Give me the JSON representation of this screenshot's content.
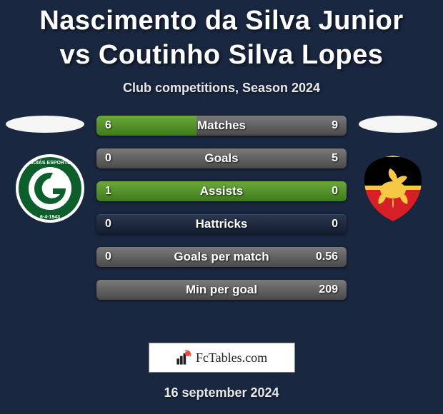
{
  "title": "Nascimento da Silva Junior vs Coutinho Silva Lopes",
  "subtitle": "Club competitions, Season 2024",
  "brand": "FcTables.com",
  "date_line": "16 september 2024",
  "background_color": "#1a2740",
  "title_color": "#ffffff",
  "title_fontsize": 38,
  "subtitle_fontsize": 18,
  "bar": {
    "height": 28,
    "gap": 18,
    "radius": 6,
    "track_gradient": [
      "rgba(255,255,255,0.08)",
      "rgba(0,0,0,0.25)"
    ],
    "label_fontsize": 17,
    "value_fontsize": 16,
    "text_color": "#ffffff"
  },
  "fill_palette": {
    "left": {
      "from": "#6aa93c",
      "to": "#3f7a1a"
    },
    "right": {
      "from": "#7a7a7a",
      "to": "#4a4a4a"
    }
  },
  "brand_box": {
    "bg": "#ffffff",
    "border": "#888888",
    "text_color": "#222222",
    "logo_color": "#e94b3c"
  },
  "teams": {
    "left": {
      "name": "Goiás",
      "crest_colors": {
        "ring_outer": "#ffffff",
        "ring_inner": "#0c5f2a",
        "disc": "#ffffff",
        "g": "#0c5f2a",
        "text": "#ffffff"
      }
    },
    "right": {
      "name": "Sport Recife",
      "crest_colors": {
        "shield_top": "#000000",
        "shield_bottom": "#d61f26",
        "stripe": "#f7c843",
        "lion": "#f7c843"
      }
    }
  },
  "rows": [
    {
      "label": "Matches",
      "left_val": "6",
      "right_val": "9",
      "left_pct": 40,
      "right_pct": 60
    },
    {
      "label": "Goals",
      "left_val": "0",
      "right_val": "5",
      "left_pct": 0,
      "right_pct": 100
    },
    {
      "label": "Assists",
      "left_val": "1",
      "right_val": "0",
      "left_pct": 100,
      "right_pct": 0
    },
    {
      "label": "Hattricks",
      "left_val": "0",
      "right_val": "0",
      "left_pct": 0,
      "right_pct": 0
    },
    {
      "label": "Goals per match",
      "left_val": "0",
      "right_val": "0.56",
      "left_pct": 0,
      "right_pct": 100
    },
    {
      "label": "Min per goal",
      "left_val": "",
      "right_val": "209",
      "left_pct": 0,
      "right_pct": 100
    }
  ]
}
